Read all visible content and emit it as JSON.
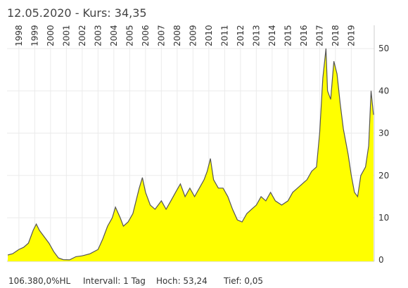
{
  "chart_data": {
    "type": "area",
    "title": "12.05.2020  - Kurs: 34,35",
    "footer": [
      "106.380,0%HL",
      "Intervall: 1 Tag",
      "Hoch: 53,24",
      "Tief: 0,05"
    ],
    "x": [
      1997.3,
      1997.6,
      1998.0,
      1998.3,
      1998.6,
      1998.9,
      1999.1,
      1999.3,
      1999.6,
      1999.9,
      2000.2,
      2000.5,
      2000.8,
      2001.2,
      2001.6,
      2002.0,
      2002.5,
      2003.0,
      2003.3,
      2003.6,
      2003.9,
      2004.1,
      2004.4,
      2004.6,
      2004.9,
      2005.2,
      2005.6,
      2005.8,
      2006.0,
      2006.3,
      2006.6,
      2007.0,
      2007.3,
      2007.6,
      2007.9,
      2008.2,
      2008.5,
      2008.8,
      2009.1,
      2009.4,
      2009.7,
      2009.9,
      2010.1,
      2010.3,
      2010.6,
      2010.9,
      2011.2,
      2011.5,
      2011.8,
      2012.1,
      2012.4,
      2012.7,
      2013.0,
      2013.3,
      2013.6,
      2013.9,
      2014.2,
      2014.6,
      2015.0,
      2015.3,
      2015.6,
      2015.9,
      2016.2,
      2016.5,
      2016.8,
      2017.0,
      2017.2,
      2017.4,
      2017.5,
      2017.7,
      2017.9,
      2018.1,
      2018.3,
      2018.5,
      2018.8,
      2019.0,
      2019.2,
      2019.4,
      2019.6,
      2019.9,
      2020.1,
      2020.25,
      2020.4
    ],
    "series": [
      {
        "color": "#ffff00",
        "line_color": "#555555",
        "values": [
          1.2,
          1.5,
          2.5,
          3.0,
          4.0,
          7.0,
          8.5,
          7.0,
          5.5,
          4.0,
          2.0,
          0.5,
          0.1,
          0.05,
          0.8,
          1.0,
          1.5,
          2.5,
          5.0,
          8.0,
          10.0,
          12.5,
          10.0,
          8.0,
          9.0,
          11.0,
          17.0,
          19.5,
          16.0,
          13.0,
          12.0,
          14.0,
          12.0,
          14.0,
          16.0,
          18.0,
          15.0,
          17.0,
          15.0,
          17.0,
          19.0,
          21.0,
          24.0,
          19.0,
          17.0,
          17.0,
          15.0,
          12.0,
          9.5,
          9.0,
          11.0,
          12.0,
          13.0,
          15.0,
          14.0,
          16.0,
          14.0,
          13.0,
          14.0,
          16.0,
          17.0,
          18.0,
          19.0,
          21.0,
          22.0,
          30.0,
          43.0,
          50.0,
          40.0,
          38.0,
          47.0,
          44.0,
          37.0,
          31.0,
          25.0,
          20.0,
          16.0,
          15.0,
          20.0,
          22.0,
          27.0,
          40.0,
          34.35
        ]
      }
    ],
    "xlim": [
      1997.25,
      2020.45
    ],
    "xticks": [
      1998,
      1999,
      2000,
      2001,
      2002,
      2003,
      2004,
      2005,
      2006,
      2007,
      2008,
      2009,
      2010,
      2011,
      2012,
      2013,
      2014,
      2015,
      2016,
      2017,
      2018,
      2019
    ],
    "ylim": [
      -0.3,
      55.5
    ],
    "yticks": [
      0,
      10,
      20,
      30,
      40,
      50
    ],
    "grid": true
  }
}
